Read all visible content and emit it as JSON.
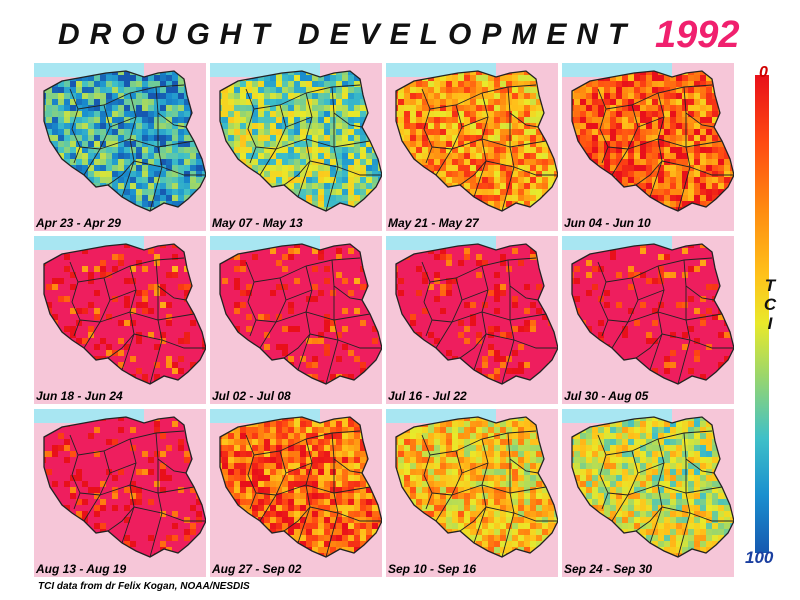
{
  "header": {
    "title": "DROUGHT DEVELOPMENT",
    "year": "1992"
  },
  "legend": {
    "title_letters": [
      "T",
      "C",
      "I"
    ],
    "top_value": "0",
    "bottom_value": "100",
    "colors": [
      "#e8101a",
      "#ff8a10",
      "#ffc21a",
      "#e9e92a",
      "#9ad66c",
      "#3fc0c8",
      "#1a8fcf",
      "#1658b0"
    ]
  },
  "panels": [
    {
      "label": "Apr 23 - Apr 29",
      "drought_level": 0.22
    },
    {
      "label": "May 07 - May 13",
      "drought_level": 0.38
    },
    {
      "label": "May 21 - May 27",
      "drought_level": 0.72
    },
    {
      "label": "Jun 04 - Jun 10",
      "drought_level": 0.85
    },
    {
      "label": "Jun 18 - Jun 24",
      "drought_level": 0.93
    },
    {
      "label": "Jul 02 - Jul 08",
      "drought_level": 0.94
    },
    {
      "label": "Jul 16 - Jul 22",
      "drought_level": 0.97
    },
    {
      "label": "Jul 30 - Aug 05",
      "drought_level": 0.96
    },
    {
      "label": "Aug 13 - Aug 19",
      "drought_level": 0.95
    },
    {
      "label": "Aug 27 - Sep 02",
      "drought_level": 0.82
    },
    {
      "label": "Sep 10 - Sep 16",
      "drought_level": 0.62
    },
    {
      "label": "Sep 24 - Sep 30",
      "drought_level": 0.5
    }
  ],
  "footer": {
    "credit": "TCI data from dr Felix Kogan, NOAA/NESDIS"
  }
}
